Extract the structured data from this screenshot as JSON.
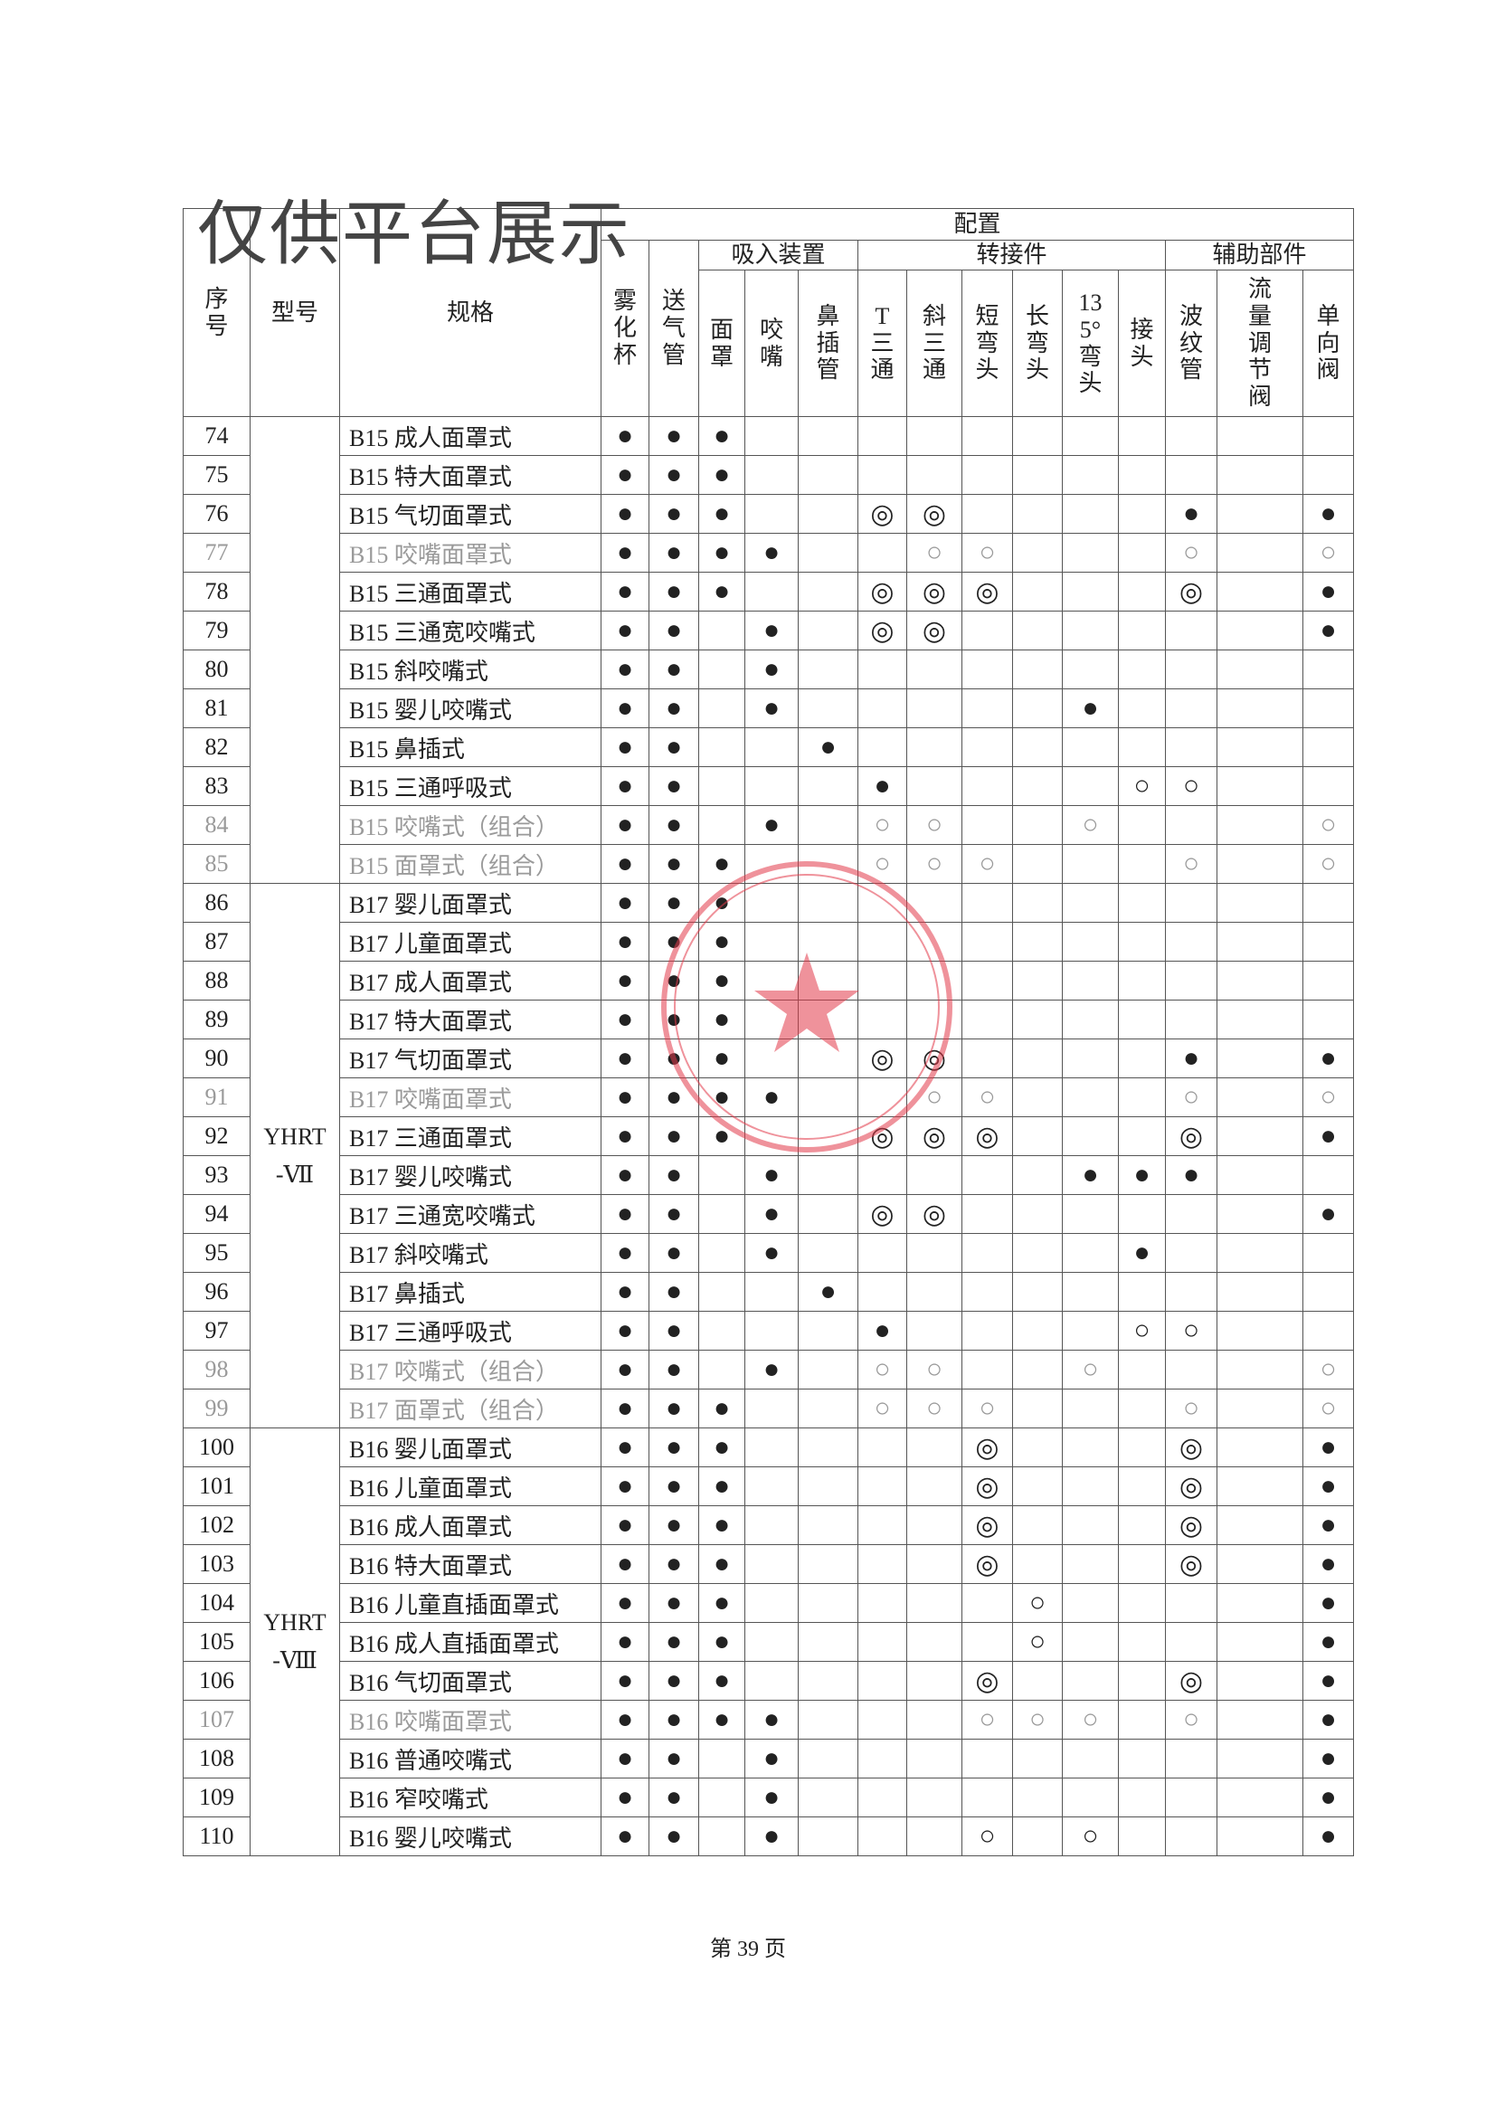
{
  "watermark": "仅供平台展示",
  "header": {
    "index": "序号",
    "model": "型号",
    "spec": "规格",
    "config": "配置",
    "standalone": [
      "雾化杯",
      "送气管"
    ],
    "groups": [
      {
        "name": "吸入装置",
        "columns": [
          "面罩",
          "咬嘴",
          "鼻插管"
        ]
      },
      {
        "name": "转接件",
        "columns": [
          "T三通",
          "斜三通",
          "短弯头",
          "长弯头",
          "135°弯头",
          "接头"
        ]
      },
      {
        "name": "辅助部件",
        "columns": [
          "波纹管",
          "流量调节阀",
          "单向阀"
        ]
      }
    ]
  },
  "groups": [
    {
      "model": null,
      "rows": [
        {
          "no": 74,
          "spec": "B15 成人面罩式",
          "marks": [
            "●",
            "●",
            "●",
            null,
            null,
            null,
            null,
            null,
            null,
            null,
            null,
            null,
            null,
            null
          ]
        },
        {
          "no": 75,
          "spec": "B15 特大面罩式",
          "marks": [
            "●",
            "●",
            "●",
            null,
            null,
            null,
            null,
            null,
            null,
            null,
            null,
            null,
            null,
            null
          ]
        },
        {
          "no": 76,
          "spec": "B15 气切面罩式",
          "marks": [
            "●",
            "●",
            "●",
            null,
            null,
            "◎",
            "◎",
            null,
            null,
            null,
            null,
            "●",
            null,
            "●"
          ]
        },
        {
          "no": 77,
          "spec": "B15 咬嘴面罩式",
          "faded": true,
          "marks": [
            "●",
            "●",
            "●",
            "●",
            null,
            null,
            "○",
            "○",
            null,
            null,
            null,
            "○",
            null,
            "○"
          ]
        },
        {
          "no": 78,
          "spec": "B15 三通面罩式",
          "marks": [
            "●",
            "●",
            "●",
            null,
            null,
            "◎",
            "◎",
            "◎",
            null,
            null,
            null,
            "◎",
            null,
            "●"
          ]
        },
        {
          "no": 79,
          "spec": "B15 三通宽咬嘴式",
          "marks": [
            "●",
            "●",
            null,
            "●",
            null,
            "◎",
            "◎",
            null,
            null,
            null,
            null,
            null,
            null,
            "●"
          ]
        },
        {
          "no": 80,
          "spec": "B15 斜咬嘴式",
          "marks": [
            "●",
            "●",
            null,
            "●",
            null,
            null,
            null,
            null,
            null,
            null,
            null,
            null,
            null,
            null
          ]
        },
        {
          "no": 81,
          "spec": "B15 婴儿咬嘴式",
          "marks": [
            "●",
            "●",
            null,
            "●",
            null,
            null,
            null,
            null,
            null,
            "●",
            null,
            null,
            null,
            null
          ]
        },
        {
          "no": 82,
          "spec": "B15 鼻插式",
          "marks": [
            "●",
            "●",
            null,
            null,
            "●",
            null,
            null,
            null,
            null,
            null,
            null,
            null,
            null,
            null
          ]
        },
        {
          "no": 83,
          "spec": "B15 三通呼吸式",
          "marks": [
            "●",
            "●",
            null,
            null,
            null,
            "●",
            null,
            null,
            null,
            null,
            "○",
            "○",
            null,
            null
          ]
        },
        {
          "no": 84,
          "spec": "B15 咬嘴式（组合）",
          "faded": true,
          "marks": [
            "●",
            "●",
            null,
            "●",
            null,
            "○",
            "○",
            null,
            null,
            "○",
            null,
            null,
            null,
            "○"
          ]
        },
        {
          "no": 85,
          "spec": "B15 面罩式（组合）",
          "faded": true,
          "marks": [
            "●",
            "●",
            "●",
            null,
            null,
            "○",
            "○",
            "○",
            null,
            null,
            null,
            "○",
            null,
            "○"
          ]
        }
      ]
    },
    {
      "model": [
        "YHRT",
        "-Ⅶ"
      ],
      "rows": [
        {
          "no": 86,
          "spec": "B17 婴儿面罩式",
          "marks": [
            "●",
            "●",
            "●",
            null,
            null,
            null,
            null,
            null,
            null,
            null,
            null,
            null,
            null,
            null
          ]
        },
        {
          "no": 87,
          "spec": "B17 儿童面罩式",
          "marks": [
            "●",
            "●",
            "●",
            null,
            null,
            null,
            null,
            null,
            null,
            null,
            null,
            null,
            null,
            null
          ]
        },
        {
          "no": 88,
          "spec": "B17 成人面罩式",
          "marks": [
            "●",
            "●",
            "●",
            null,
            null,
            null,
            null,
            null,
            null,
            null,
            null,
            null,
            null,
            null
          ]
        },
        {
          "no": 89,
          "spec": "B17 特大面罩式",
          "marks": [
            "●",
            "●",
            "●",
            null,
            null,
            null,
            null,
            null,
            null,
            null,
            null,
            null,
            null,
            null
          ]
        },
        {
          "no": 90,
          "spec": "B17 气切面罩式",
          "marks": [
            "●",
            "●",
            "●",
            null,
            null,
            "◎",
            "◎",
            null,
            null,
            null,
            null,
            "●",
            null,
            "●"
          ]
        },
        {
          "no": 91,
          "spec": "B17 咬嘴面罩式",
          "faded": true,
          "marks": [
            "●",
            "●",
            "●",
            "●",
            null,
            null,
            "○",
            "○",
            null,
            null,
            null,
            "○",
            null,
            "○"
          ]
        },
        {
          "no": 92,
          "spec": "B17 三通面罩式",
          "marks": [
            "●",
            "●",
            "●",
            null,
            null,
            "◎",
            "◎",
            "◎",
            null,
            null,
            null,
            "◎",
            null,
            "●"
          ]
        },
        {
          "no": 93,
          "spec": "B17 婴儿咬嘴式",
          "marks": [
            "●",
            "●",
            null,
            "●",
            null,
            null,
            null,
            null,
            null,
            "●",
            "●",
            "●",
            null,
            null
          ]
        },
        {
          "no": 94,
          "spec": "B17 三通宽咬嘴式",
          "marks": [
            "●",
            "●",
            null,
            "●",
            null,
            "◎",
            "◎",
            null,
            null,
            null,
            null,
            null,
            null,
            "●"
          ]
        },
        {
          "no": 95,
          "spec": "B17 斜咬嘴式",
          "marks": [
            "●",
            "●",
            null,
            "●",
            null,
            null,
            null,
            null,
            null,
            null,
            "●",
            null,
            null,
            null
          ]
        },
        {
          "no": 96,
          "spec": "B17 鼻插式",
          "marks": [
            "●",
            "●",
            null,
            null,
            "●",
            null,
            null,
            null,
            null,
            null,
            null,
            null,
            null,
            null
          ]
        },
        {
          "no": 97,
          "spec": "B17 三通呼吸式",
          "marks": [
            "●",
            "●",
            null,
            null,
            null,
            "●",
            null,
            null,
            null,
            null,
            "○",
            "○",
            null,
            null
          ]
        },
        {
          "no": 98,
          "spec": "B17 咬嘴式（组合）",
          "faded": true,
          "marks": [
            "●",
            "●",
            null,
            "●",
            null,
            "○",
            "○",
            null,
            null,
            "○",
            null,
            null,
            null,
            "○"
          ]
        },
        {
          "no": 99,
          "spec": "B17 面罩式（组合）",
          "faded": true,
          "marks": [
            "●",
            "●",
            "●",
            null,
            null,
            "○",
            "○",
            "○",
            null,
            null,
            null,
            "○",
            null,
            "○"
          ]
        }
      ]
    },
    {
      "model": [
        "YHRT",
        "-Ⅷ"
      ],
      "rows": [
        {
          "no": 100,
          "spec": "B16 婴儿面罩式",
          "marks": [
            "●",
            "●",
            "●",
            null,
            null,
            null,
            null,
            "◎",
            null,
            null,
            null,
            "◎",
            null,
            "●"
          ]
        },
        {
          "no": 101,
          "spec": "B16 儿童面罩式",
          "marks": [
            "●",
            "●",
            "●",
            null,
            null,
            null,
            null,
            "◎",
            null,
            null,
            null,
            "◎",
            null,
            "●"
          ]
        },
        {
          "no": 102,
          "spec": "B16 成人面罩式",
          "marks": [
            "●",
            "●",
            "●",
            null,
            null,
            null,
            null,
            "◎",
            null,
            null,
            null,
            "◎",
            null,
            "●"
          ]
        },
        {
          "no": 103,
          "spec": "B16 特大面罩式",
          "marks": [
            "●",
            "●",
            "●",
            null,
            null,
            null,
            null,
            "◎",
            null,
            null,
            null,
            "◎",
            null,
            "●"
          ]
        },
        {
          "no": 104,
          "spec": "B16 儿童直插面罩式",
          "marks": [
            "●",
            "●",
            "●",
            null,
            null,
            null,
            null,
            null,
            "○",
            null,
            null,
            null,
            null,
            "●"
          ]
        },
        {
          "no": 105,
          "spec": "B16 成人直插面罩式",
          "marks": [
            "●",
            "●",
            "●",
            null,
            null,
            null,
            null,
            null,
            "○",
            null,
            null,
            null,
            null,
            "●"
          ]
        },
        {
          "no": 106,
          "spec": "B16 气切面罩式",
          "marks": [
            "●",
            "●",
            "●",
            null,
            null,
            null,
            null,
            "◎",
            null,
            null,
            null,
            "◎",
            null,
            "●"
          ]
        },
        {
          "no": 107,
          "spec": "B16 咬嘴面罩式",
          "faded": true,
          "marks": [
            "●",
            "●",
            "●",
            "●",
            null,
            null,
            null,
            "○",
            "○",
            "○",
            null,
            "○",
            null,
            "●"
          ]
        },
        {
          "no": 108,
          "spec": "B16 普通咬嘴式",
          "marks": [
            "●",
            "●",
            null,
            "●",
            null,
            null,
            null,
            null,
            null,
            null,
            null,
            null,
            null,
            "●"
          ]
        },
        {
          "no": 109,
          "spec": "B16 窄咬嘴式",
          "marks": [
            "●",
            "●",
            null,
            "●",
            null,
            null,
            null,
            null,
            null,
            null,
            null,
            null,
            null,
            "●"
          ]
        },
        {
          "no": 110,
          "spec": "B16 婴儿咬嘴式",
          "marks": [
            "●",
            "●",
            null,
            "●",
            null,
            null,
            null,
            "○",
            null,
            "○",
            null,
            null,
            null,
            "●"
          ]
        }
      ]
    }
  ],
  "footer": "第 39 页"
}
